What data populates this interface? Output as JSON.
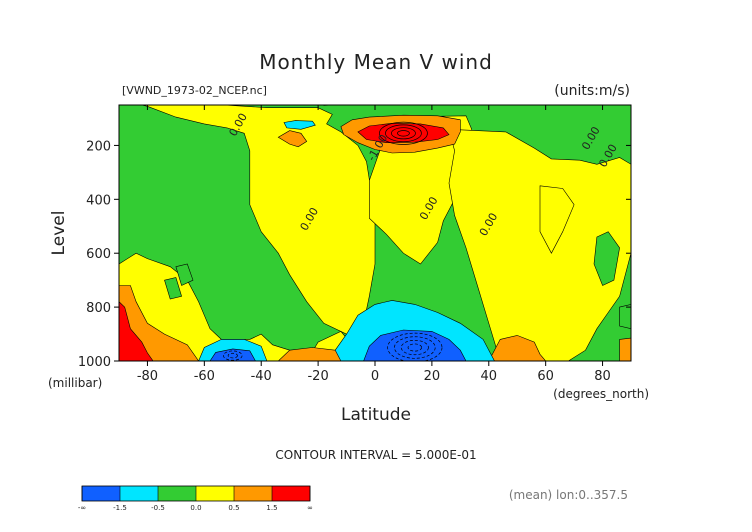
{
  "chart_data": {
    "type": "contour",
    "title": "Monthly Mean V wind",
    "dataset_label": "[VWND_1973-02_NCEP.nc]",
    "units_label": "(units:m/s)",
    "xlabel": "Latitude",
    "x_units_label": "(degrees_north)",
    "ylabel": "Level",
    "y_units_label": "(millibar)",
    "xlim": [
      -90,
      90
    ],
    "ylim": [
      1000,
      50
    ],
    "y_inverted": true,
    "x_ticks": [
      -80,
      -60,
      -40,
      -20,
      0,
      20,
      40,
      60,
      80
    ],
    "y_ticks": [
      200,
      400,
      600,
      800,
      1000
    ],
    "contour_interval_text": "CONTOUR INTERVAL = 5.000E-01",
    "footer_text": "(mean) lon:0..357.5",
    "contour_labels": [
      {
        "text": "0.00",
        "x": -47,
        "y": 130
      },
      {
        "text": "-1.00",
        "x": 2,
        "y": 215
      },
      {
        "text": "0.00",
        "x": 77,
        "y": 180
      },
      {
        "text": "0.00",
        "x": 83,
        "y": 245
      },
      {
        "text": "0.00",
        "x": -22,
        "y": 480
      },
      {
        "text": "0.00",
        "x": 20,
        "y": 440
      },
      {
        "text": "0.00",
        "x": 41,
        "y": 500
      }
    ],
    "colorbar": {
      "tick_labels": [
        "-∞",
        "-1.5",
        "-0.5",
        "0.0",
        "0.5",
        "1.5",
        "∞"
      ],
      "colors": [
        "#1060ff",
        "#00e5ff",
        "#33cc33",
        "#ffff00",
        "#ff9900",
        "#ff0000"
      ]
    },
    "regions": [
      {
        "level": "green",
        "color": "#33cc33",
        "poly": [
          [
            -90,
            30
          ],
          [
            90,
            30
          ],
          [
            90,
            1000
          ],
          [
            -90,
            1000
          ]
        ]
      },
      {
        "level": "yellow",
        "color": "#ffff00",
        "poly": [
          [
            -90,
            30
          ],
          [
            -80,
            55
          ],
          [
            -70,
            95
          ],
          [
            -60,
            120
          ],
          [
            -52,
            135
          ],
          [
            -46,
            155
          ],
          [
            -44,
            220
          ],
          [
            -44,
            420
          ],
          [
            -40,
            520
          ],
          [
            -34,
            600
          ],
          [
            -30,
            680
          ],
          [
            -24,
            780
          ],
          [
            -18,
            860
          ],
          [
            -10,
            900
          ],
          [
            -4,
            860
          ],
          [
            -2,
            760
          ],
          [
            0,
            640
          ],
          [
            0,
            460
          ],
          [
            -3,
            260
          ],
          [
            -6,
            200
          ],
          [
            -12,
            150
          ],
          [
            -17,
            120
          ],
          [
            -15,
            85
          ],
          [
            -20,
            60
          ],
          [
            -38,
            60
          ],
          [
            -60,
            45
          ],
          [
            -80,
            35
          ]
        ]
      },
      {
        "level": "yellow",
        "color": "#ffff00",
        "poly": [
          [
            6,
            95
          ],
          [
            32,
            90
          ],
          [
            34,
            140
          ],
          [
            32,
            250
          ],
          [
            30,
            360
          ],
          [
            24,
            480
          ],
          [
            22,
            560
          ],
          [
            16,
            640
          ],
          [
            10,
            600
          ],
          [
            4,
            530
          ],
          [
            -2,
            470
          ],
          [
            -2,
            330
          ],
          [
            2,
            210
          ],
          [
            4,
            150
          ]
        ]
      },
      {
        "level": "yellow",
        "color": "#ffff00",
        "poly": [
          [
            26,
            140
          ],
          [
            46,
            150
          ],
          [
            56,
            210
          ],
          [
            62,
            250
          ],
          [
            72,
            255
          ],
          [
            78,
            270
          ],
          [
            86,
            245
          ],
          [
            90,
            270
          ],
          [
            90,
            600
          ],
          [
            86,
            760
          ],
          [
            82,
            820
          ],
          [
            78,
            880
          ],
          [
            74,
            960
          ],
          [
            68,
            1000
          ],
          [
            44,
            1000
          ],
          [
            40,
            860
          ],
          [
            36,
            720
          ],
          [
            32,
            580
          ],
          [
            28,
            460
          ],
          [
            26,
            340
          ],
          [
            28,
            220
          ]
        ]
      },
      {
        "level": "yellow",
        "color": "#ffff00",
        "poly": [
          [
            -90,
            1000
          ],
          [
            -90,
            640
          ],
          [
            -84,
            600
          ],
          [
            -80,
            620
          ],
          [
            -72,
            650
          ],
          [
            -66,
            700
          ],
          [
            -62,
            780
          ],
          [
            -58,
            880
          ],
          [
            -54,
            920
          ],
          [
            -44,
            920
          ],
          [
            -40,
            900
          ],
          [
            -36,
            940
          ],
          [
            -30,
            960
          ],
          [
            -24,
            1000
          ]
        ]
      },
      {
        "level": "yellow",
        "color": "#ffff00",
        "poly": [
          [
            -24,
            1000
          ],
          [
            -20,
            930
          ],
          [
            -12,
            890
          ],
          [
            -8,
            940
          ],
          [
            -4,
            1000
          ]
        ]
      },
      {
        "level": "yellow",
        "color": "#ffff00",
        "poly": [
          [
            58,
            350
          ],
          [
            66,
            360
          ],
          [
            70,
            420
          ],
          [
            66,
            520
          ],
          [
            62,
            600
          ],
          [
            58,
            520
          ]
        ]
      },
      {
        "level": "green",
        "color": "#33cc33",
        "poly": [
          [
            -70,
            650
          ],
          [
            -66,
            640
          ],
          [
            -64,
            700
          ],
          [
            -68,
            720
          ]
        ]
      },
      {
        "level": "green",
        "color": "#33cc33",
        "poly": [
          [
            -74,
            700
          ],
          [
            -70,
            690
          ],
          [
            -68,
            760
          ],
          [
            -72,
            770
          ]
        ]
      },
      {
        "level": "green",
        "color": "#33cc33",
        "poly": [
          [
            78,
            540
          ],
          [
            82,
            520
          ],
          [
            86,
            580
          ],
          [
            84,
            700
          ],
          [
            80,
            720
          ],
          [
            77,
            640
          ]
        ]
      },
      {
        "level": "green",
        "color": "#33cc33",
        "poly": [
          [
            86,
            800
          ],
          [
            90,
            790
          ],
          [
            90,
            880
          ],
          [
            86,
            870
          ]
        ]
      },
      {
        "level": "orange",
        "color": "#ff9900",
        "poly": [
          [
            -30,
            195
          ],
          [
            -34,
            170
          ],
          [
            -30,
            145
          ],
          [
            -26,
            155
          ],
          [
            -24,
            185
          ],
          [
            -27,
            205
          ]
        ]
      },
      {
        "level": "orange",
        "color": "#ff9900",
        "poly": [
          [
            -20,
            30
          ],
          [
            -10,
            30
          ],
          [
            -12,
            48
          ],
          [
            -18,
            52
          ]
        ]
      },
      {
        "level": "orange",
        "color": "#ff9900",
        "poly": [
          [
            -12,
            130
          ],
          [
            -8,
            105
          ],
          [
            -2,
            95
          ],
          [
            10,
            88
          ],
          [
            22,
            90
          ],
          [
            30,
            105
          ],
          [
            30,
            150
          ],
          [
            28,
            195
          ],
          [
            22,
            210
          ],
          [
            14,
            225
          ],
          [
            6,
            228
          ],
          [
            0,
            215
          ],
          [
            -6,
            190
          ],
          [
            -11,
            160
          ]
        ]
      },
      {
        "level": "red",
        "color": "#ff0000",
        "poly": [
          [
            -6,
            150
          ],
          [
            -2,
            128
          ],
          [
            6,
            118
          ],
          [
            16,
            120
          ],
          [
            24,
            135
          ],
          [
            26,
            160
          ],
          [
            22,
            178
          ],
          [
            14,
            188
          ],
          [
            4,
            190
          ],
          [
            -3,
            178
          ]
        ]
      },
      {
        "level": "orange",
        "color": "#ff9900",
        "poly": [
          [
            -90,
            1000
          ],
          [
            -90,
            720
          ],
          [
            -86,
            720
          ],
          [
            -84,
            780
          ],
          [
            -80,
            860
          ],
          [
            -74,
            900
          ],
          [
            -66,
            940
          ],
          [
            -62,
            1000
          ]
        ]
      },
      {
        "level": "red",
        "color": "#ff0000",
        "poly": [
          [
            -90,
            1000
          ],
          [
            -90,
            780
          ],
          [
            -88,
            800
          ],
          [
            -86,
            880
          ],
          [
            -82,
            930
          ],
          [
            -80,
            970
          ],
          [
            -78,
            1000
          ]
        ]
      },
      {
        "level": "orange",
        "color": "#ff9900",
        "poly": [
          [
            -34,
            1000
          ],
          [
            -30,
            960
          ],
          [
            -22,
            950
          ],
          [
            -14,
            960
          ],
          [
            -8,
            985
          ],
          [
            -6,
            1000
          ]
        ]
      },
      {
        "level": "orange",
        "color": "#ff9900",
        "poly": [
          [
            40,
            1000
          ],
          [
            44,
            920
          ],
          [
            50,
            905
          ],
          [
            56,
            930
          ],
          [
            58,
            975
          ],
          [
            60,
            1000
          ]
        ]
      },
      {
        "level": "orange",
        "color": "#ff9900",
        "poly": [
          [
            86,
            920
          ],
          [
            90,
            915
          ],
          [
            90,
            1000
          ],
          [
            86,
            1000
          ]
        ]
      },
      {
        "level": "cyan",
        "color": "#00e5ff",
        "poly": [
          [
            -32,
            115
          ],
          [
            -28,
            108
          ],
          [
            -22,
            110
          ],
          [
            -21,
            125
          ],
          [
            -26,
            140
          ],
          [
            -31,
            135
          ]
        ]
      },
      {
        "level": "cyan",
        "color": "#00e5ff",
        "poly": [
          [
            -12,
            1000
          ],
          [
            -14,
            960
          ],
          [
            -10,
            900
          ],
          [
            -6,
            830
          ],
          [
            0,
            790
          ],
          [
            6,
            775
          ],
          [
            14,
            790
          ],
          [
            22,
            820
          ],
          [
            30,
            860
          ],
          [
            38,
            920
          ],
          [
            42,
            1000
          ]
        ]
      },
      {
        "level": "cyan",
        "color": "#00e5ff",
        "poly": [
          [
            -62,
            1000
          ],
          [
            -60,
            950
          ],
          [
            -54,
            920
          ],
          [
            -46,
            920
          ],
          [
            -40,
            945
          ],
          [
            -38,
            1000
          ]
        ]
      },
      {
        "level": "blue",
        "color": "#1060ff",
        "poly": [
          [
            -4,
            1000
          ],
          [
            -2,
            945
          ],
          [
            2,
            905
          ],
          [
            10,
            885
          ],
          [
            20,
            890
          ],
          [
            26,
            920
          ],
          [
            30,
            960
          ],
          [
            32,
            1000
          ]
        ]
      },
      {
        "level": "blue",
        "color": "#1060ff",
        "poly": [
          [
            -58,
            1000
          ],
          [
            -56,
            968
          ],
          [
            -50,
            955
          ],
          [
            -44,
            962
          ],
          [
            -42,
            1000
          ]
        ]
      }
    ]
  }
}
